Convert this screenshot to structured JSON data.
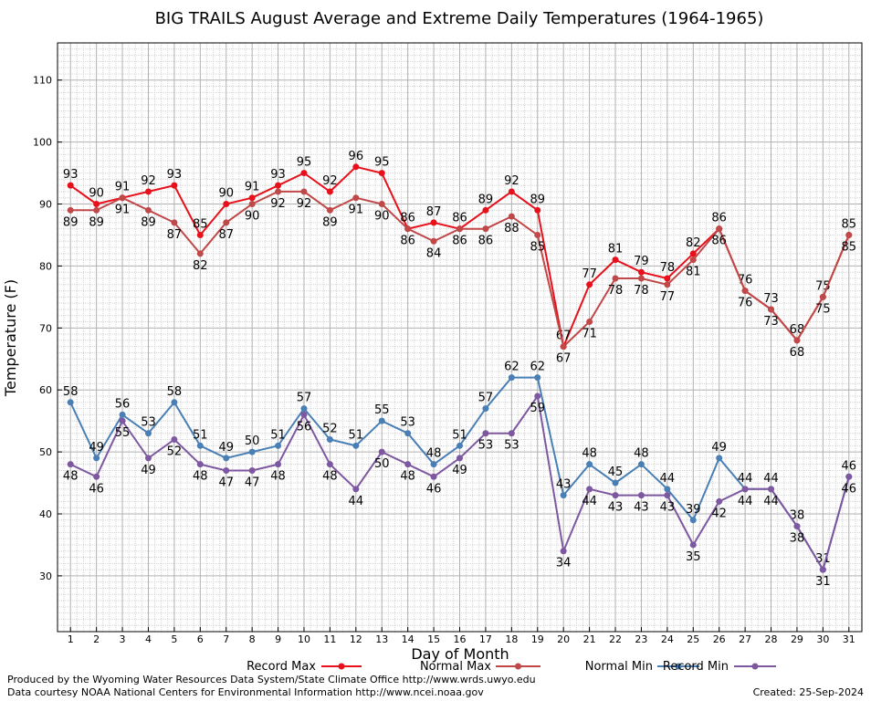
{
  "chart_data": {
    "type": "line",
    "title": "BIG TRAILS August Average and Extreme Daily Temperatures (1964-1965)",
    "xlabel": "Day of Month",
    "ylabel": "Temperature (F)",
    "ylim": [
      21,
      116
    ],
    "xlim": [
      0.5,
      31.5
    ],
    "yticks": [
      30,
      40,
      50,
      60,
      70,
      80,
      90,
      100,
      110
    ],
    "categories": [
      "1",
      "2",
      "3",
      "4",
      "5",
      "6",
      "7",
      "8",
      "9",
      "10",
      "11",
      "12",
      "13",
      "14",
      "15",
      "16",
      "17",
      "18",
      "19",
      "20",
      "21",
      "22",
      "23",
      "24",
      "25",
      "26",
      "27",
      "28",
      "29",
      "30",
      "31"
    ],
    "grid": true,
    "legend_position": "bottom",
    "series": [
      {
        "name": "Record Max",
        "color": "#e8101a",
        "values": [
          93,
          90,
          91,
          92,
          93,
          85,
          90,
          91,
          93,
          95,
          92,
          96,
          95,
          86,
          87,
          86,
          89,
          92,
          89,
          67,
          77,
          81,
          79,
          78,
          82,
          86,
          76,
          73,
          68,
          75,
          85
        ]
      },
      {
        "name": "Normal Max",
        "color": "#c04848",
        "values": [
          89,
          89,
          91,
          89,
          87,
          82,
          87,
          90,
          92,
          92,
          89,
          91,
          90,
          86,
          84,
          86,
          86,
          88,
          85,
          67,
          71,
          78,
          78,
          77,
          81,
          86,
          76,
          73,
          68,
          75,
          85
        ]
      },
      {
        "name": "Normal Min",
        "color": "#4a7fb5",
        "values": [
          58,
          49,
          56,
          53,
          58,
          51,
          49,
          50,
          51,
          57,
          52,
          51,
          55,
          53,
          48,
          51,
          57,
          62,
          62,
          43,
          48,
          45,
          48,
          44,
          39,
          49,
          44,
          44,
          38,
          31,
          46
        ]
      },
      {
        "name": "Record Min",
        "color": "#7d58a0",
        "values": [
          48,
          46,
          55,
          49,
          52,
          48,
          47,
          47,
          48,
          56,
          48,
          44,
          50,
          48,
          46,
          49,
          53,
          53,
          59,
          34,
          44,
          43,
          43,
          43,
          35,
          42,
          44,
          44,
          38,
          31,
          46
        ]
      }
    ]
  },
  "footer": {
    "produced_by": "Produced by the Wyoming Water Resources Data System/State Climate Office http://www.wrds.uwyo.edu",
    "courtesy": "Data courtesy NOAA National Centers for Environmental Information http://www.ncei.noaa.gov",
    "created": "Created:  25-Sep-2024"
  }
}
